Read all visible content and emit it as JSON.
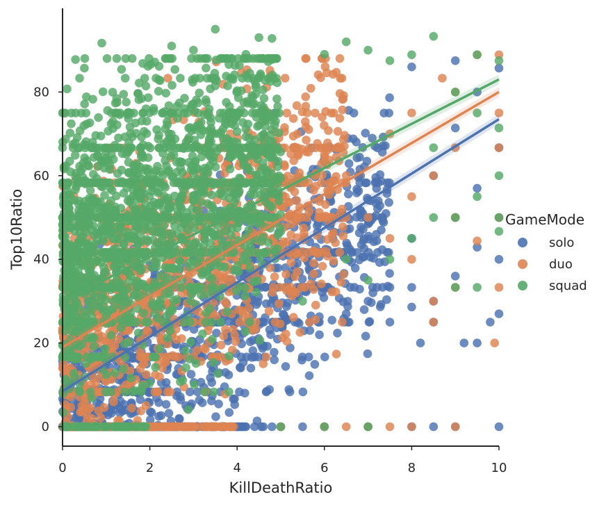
{
  "chart_data": {
    "type": "scatter",
    "xlabel": "KillDeathRatio",
    "ylabel": "Top10Ratio",
    "xlim": [
      0,
      10
    ],
    "ylim": [
      -4.5,
      100
    ],
    "xticks": [
      0,
      2,
      4,
      6,
      8,
      10
    ],
    "yticks": [
      0,
      20,
      40,
      60,
      80
    ],
    "grid": false,
    "legend": {
      "title": "GameMode",
      "placement": "center-right-outside"
    },
    "series": [
      {
        "name": "solo",
        "color": "#4c72b0",
        "regression": {
          "intercept": 8.5,
          "slope": 6.5
        }
      },
      {
        "name": "duo",
        "color": "#dd8452",
        "regression": {
          "intercept": 19.0,
          "slope": 6.1
        }
      },
      {
        "name": "squad",
        "color": "#55a868",
        "regression": {
          "intercept": 30.0,
          "slope": 5.3
        }
      }
    ],
    "zero_row_points": {
      "solo": [
        4.2,
        4.4,
        4.6,
        4.8,
        5.0,
        5.5,
        6.0,
        7.0,
        8.0,
        8.5,
        9.0,
        10.0
      ],
      "duo": [
        5.0,
        6.0,
        6.5,
        7.0,
        7.5,
        8.0,
        9.0
      ],
      "squad": [
        5.0,
        6.0,
        7.0
      ]
    },
    "outlier_points": {
      "solo": [
        [
          9.0,
          87.5
        ],
        [
          8.0,
          86
        ],
        [
          10.0,
          85.7
        ],
        [
          9.5,
          80
        ],
        [
          9.0,
          71.4
        ],
        [
          10.0,
          66.7
        ],
        [
          8.5,
          60
        ],
        [
          9.5,
          57
        ],
        [
          10.0,
          50
        ],
        [
          9.0,
          50
        ],
        [
          8.0,
          45
        ],
        [
          9.5,
          42.9
        ],
        [
          10.0,
          40
        ],
        [
          9.0,
          36
        ],
        [
          8.5,
          30
        ],
        [
          10.0,
          27
        ],
        [
          9.8,
          25
        ],
        [
          8.2,
          20
        ],
        [
          9.2,
          20
        ],
        [
          9.5,
          20
        ],
        [
          7.5,
          25
        ],
        [
          7.0,
          30
        ],
        [
          6.5,
          27
        ],
        [
          6.0,
          33
        ],
        [
          7.5,
          33.3
        ],
        [
          8.0,
          33.3
        ],
        [
          8.5,
          25
        ],
        [
          8.0,
          28.6
        ]
      ],
      "duo": [
        [
          9.5,
          88.9
        ],
        [
          10.0,
          88.9
        ],
        [
          10.0,
          75
        ],
        [
          9.0,
          80
        ],
        [
          8.0,
          75
        ],
        [
          9.0,
          66.7
        ],
        [
          10.0,
          66.7
        ],
        [
          8.5,
          60
        ],
        [
          10.0,
          50
        ],
        [
          9.0,
          50
        ],
        [
          8.0,
          55
        ],
        [
          9.5,
          44.4
        ],
        [
          10.0,
          33.3
        ],
        [
          9.0,
          33.3
        ],
        [
          8.5,
          30
        ],
        [
          8.5,
          25
        ],
        [
          9.9,
          20
        ],
        [
          8.0,
          40
        ],
        [
          7.5,
          45
        ],
        [
          7.0,
          50
        ],
        [
          6.5,
          60
        ],
        [
          6.0,
          65
        ],
        [
          7.5,
          70
        ],
        [
          8.7,
          83.3
        ]
      ],
      "squad": [
        [
          6.0,
          89
        ],
        [
          6.5,
          92
        ],
        [
          7.0,
          90
        ],
        [
          7.5,
          87.5
        ],
        [
          8.0,
          88.9
        ],
        [
          8.5,
          93.3
        ],
        [
          9.5,
          88.9
        ],
        [
          10.0,
          87.5
        ],
        [
          9.0,
          80
        ],
        [
          10.0,
          71.4
        ],
        [
          9.5,
          75
        ],
        [
          8.5,
          66.7
        ],
        [
          10.0,
          60
        ],
        [
          9.5,
          55
        ],
        [
          9.0,
          50
        ],
        [
          10.0,
          50
        ],
        [
          10.0,
          46.7
        ],
        [
          8.5,
          50
        ],
        [
          8.0,
          45
        ],
        [
          9.5,
          33.3
        ],
        [
          9.0,
          33.3
        ],
        [
          7.5,
          40
        ],
        [
          7.0,
          35
        ],
        [
          6.5,
          40
        ],
        [
          5.5,
          30
        ],
        [
          3.5,
          95
        ],
        [
          4.5,
          93
        ],
        [
          4.8,
          92.8
        ],
        [
          4.2,
          89
        ],
        [
          3.0,
          90
        ],
        [
          2.5,
          91
        ],
        [
          0.9,
          91.7
        ],
        [
          0.5,
          85.7
        ],
        [
          0.3,
          75
        ],
        [
          0.0,
          75
        ],
        [
          0.0,
          66.7
        ]
      ]
    }
  }
}
